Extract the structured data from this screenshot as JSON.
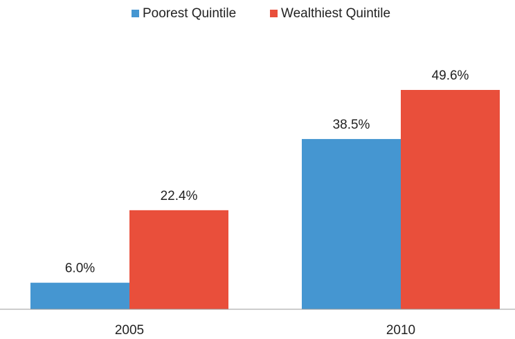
{
  "chart_data": {
    "type": "bar",
    "categories": [
      "2005",
      "2010"
    ],
    "series": [
      {
        "name": "Poorest Quintile",
        "color": "#4596d1",
        "values": [
          6.0,
          38.5
        ],
        "value_labels": [
          "6.0%",
          "38.5%"
        ]
      },
      {
        "name": "Wealthiest Quintile",
        "color": "#e94f3b",
        "values": [
          22.4,
          49.6
        ],
        "value_labels": [
          "22.4%",
          "49.6%"
        ]
      }
    ],
    "legend": "top"
  }
}
